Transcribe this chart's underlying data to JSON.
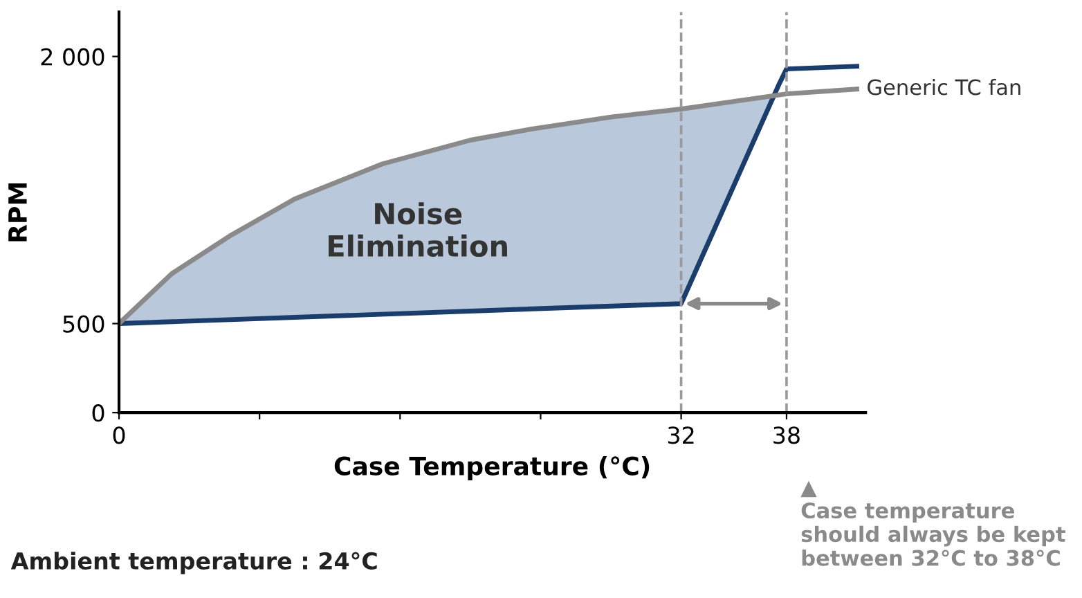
{
  "chart_data": {
    "type": "line",
    "xlabel": "Case Temperature (°C)",
    "ylabel": "RPM",
    "xlim": [
      0,
      42.5
    ],
    "ylim": [
      0,
      2250
    ],
    "xticks": [
      0,
      {
        "value": 8,
        "label": null
      },
      {
        "value": 16,
        "label": null
      },
      {
        "value": 24,
        "label": null
      },
      32,
      38
    ],
    "yticks": [
      0,
      500,
      {
        "value": 2000,
        "label": "2 000"
      }
    ],
    "series": [
      {
        "color": "#1a3d6b",
        "x": [
          0,
          32,
          37.6,
          38,
          42
        ],
        "values": [
          500,
          612,
          1850,
          1930,
          1945
        ]
      },
      {
        "name": "Generic TC fan",
        "color": "#8a8a8a",
        "x": [
          0,
          3,
          6.4,
          10,
          15,
          20,
          23.5,
          28,
          32,
          38,
          42
        ],
        "values": [
          500,
          780,
          998,
          1200,
          1397,
          1530,
          1593,
          1660,
          1705,
          1790,
          1817
        ]
      }
    ],
    "ref_lines": [
      {
        "axis": "x",
        "value": 32,
        "color": "#999999",
        "line_style": "dashed"
      },
      {
        "axis": "x",
        "value": 38,
        "color": "#999999",
        "line_style": "dashed"
      }
    ],
    "annotations": [
      "Noise\nElimination",
      "▲\nCase temperature\nshould always be kept\nbetween 32°C to 38°C",
      "Ambient temperature : 24°C"
    ],
    "grid": false,
    "marker": "none",
    "line_style": "solid"
  }
}
